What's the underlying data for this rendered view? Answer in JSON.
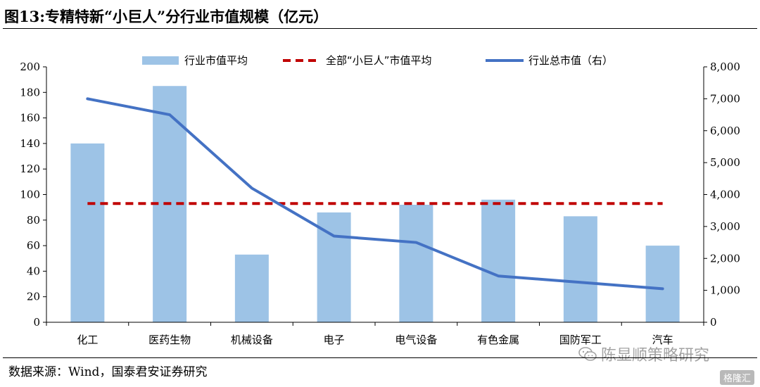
{
  "title": "图13:专精特新“小巨人”分行业市值规模（亿元）",
  "source": "数据来源：Wind，国泰君安证券研究",
  "watermark": "陈显顺策略研究",
  "corner_logo": "格隆汇",
  "colors": {
    "bar": "#9DC3E6",
    "avg_line": "#C00000",
    "total_line": "#4472C4",
    "axis": "#000000"
  },
  "chart_data": {
    "type": "bar",
    "categories": [
      "化工",
      "医药生物",
      "机械设备",
      "电子",
      "电气设备",
      "有色金属",
      "国防军工",
      "汽车"
    ],
    "series": [
      {
        "name": "行业市值平均",
        "type": "bar",
        "axis": "left",
        "values": [
          140,
          185,
          53,
          86,
          92,
          96,
          83,
          60
        ]
      },
      {
        "name": "全部“小巨人”市值平均",
        "type": "line",
        "style": "dashed",
        "axis": "left",
        "values": [
          93,
          93,
          93,
          93,
          93,
          93,
          93,
          93
        ]
      },
      {
        "name": "行业总市值（右）",
        "type": "line",
        "style": "solid",
        "axis": "right",
        "values": [
          7000,
          6500,
          4200,
          2700,
          2500,
          1450,
          1250,
          1050
        ]
      }
    ],
    "y_left": {
      "min": 0,
      "max": 200,
      "step": 20,
      "ticks": [
        "0",
        "20",
        "40",
        "60",
        "80",
        "100",
        "120",
        "140",
        "160",
        "180",
        "200"
      ]
    },
    "y_right": {
      "min": 0,
      "max": 8000,
      "step": 1000,
      "ticks": [
        "0",
        "1,000",
        "2,000",
        "3,000",
        "4,000",
        "5,000",
        "6,000",
        "7,000",
        "8,000"
      ]
    },
    "grid": false,
    "legend_position": "top"
  }
}
